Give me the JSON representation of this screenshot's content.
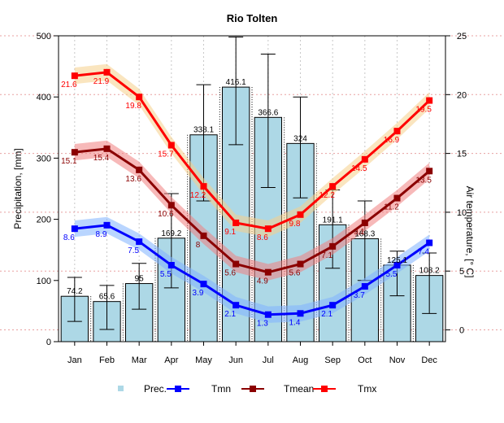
{
  "chart_data": {
    "type": "bar",
    "title": "Rio Tolten",
    "ylabel": "Precipitation, [mm]",
    "y2label": "Air temperature, [° C]",
    "categories": [
      "Jan",
      "Feb",
      "Mar",
      "Apr",
      "May",
      "Jun",
      "Jul",
      "Aug",
      "Sep",
      "Oct",
      "Nov",
      "Dec"
    ],
    "ylim": [
      0,
      500
    ],
    "y2lim": [
      -1,
      25
    ],
    "yticks": [
      0,
      100,
      200,
      300,
      400,
      500
    ],
    "y2ticks": [
      0,
      5,
      10,
      15,
      20,
      25
    ],
    "grid": true,
    "legend_position": "bottom",
    "series": [
      {
        "name": "Prec.",
        "kind": "bar",
        "axis": "left",
        "color": "#add8e6",
        "values": [
          74.2,
          65.6,
          95,
          169.2,
          338.1,
          416.1,
          366.6,
          324,
          191.1,
          168.3,
          125.1,
          108.2
        ],
        "labels": [
          "74.2",
          "65.6",
          "95",
          "169.2",
          "338.1",
          "416.1",
          "366.6",
          "324",
          "191.1",
          "168.3",
          "125.1",
          "108.2"
        ],
        "error_low": [
          33,
          20,
          53,
          88,
          230,
          322,
          252,
          235,
          120,
          100,
          75,
          46
        ],
        "error_high": [
          105,
          92,
          128,
          242,
          420,
          498,
          470,
          400,
          248,
          230,
          148,
          145
        ]
      },
      {
        "name": "Tmn",
        "kind": "line",
        "axis": "right",
        "color": "#0000ff",
        "band_color": "#7fb2ff",
        "values": [
          8.6,
          8.9,
          7.5,
          5.5,
          3.9,
          2.1,
          1.3,
          1.4,
          2.1,
          3.7,
          5.5,
          7.4
        ],
        "labels": [
          "8.6",
          "8.9",
          "7.5",
          "5.5",
          "3.9",
          "2.1",
          "1.3",
          "1.4",
          "2.1",
          "3.7",
          "5.5",
          "7.4"
        ]
      },
      {
        "name": "Tmean",
        "kind": "line",
        "axis": "right",
        "color": "#8b0000",
        "band_color": "#f08080",
        "values": [
          15.1,
          15.4,
          13.6,
          10.6,
          8,
          5.6,
          4.9,
          5.6,
          7.1,
          9.1,
          11.2,
          13.5
        ],
        "labels": [
          "15.1",
          "15.4",
          "13.6",
          "10.6",
          "8",
          "5.6",
          "4.9",
          "5.6",
          "7.1",
          "9.1",
          "11.2",
          "13.5"
        ]
      },
      {
        "name": "Tmx",
        "kind": "line",
        "axis": "right",
        "color": "#ff0000",
        "band_color": "#f5d08a",
        "values": [
          21.6,
          21.9,
          19.8,
          15.7,
          12.2,
          9.1,
          8.6,
          9.8,
          12.2,
          14.5,
          16.9,
          19.5
        ],
        "labels": [
          "21.6",
          "21.9",
          "19.8",
          "15.7",
          "12.2",
          "9.1",
          "8.6",
          "9.8",
          "12.2",
          "14.5",
          "16.9",
          "19.5"
        ]
      }
    ]
  }
}
